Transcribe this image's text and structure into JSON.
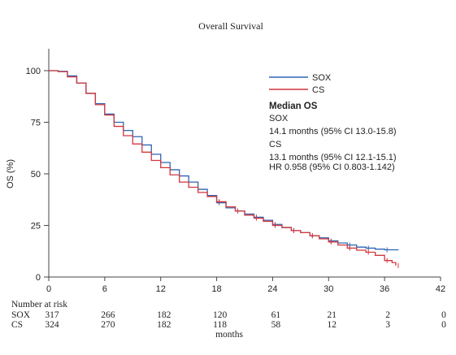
{
  "chart_data": {
    "type": "line",
    "title": "Overall Survival",
    "xlabel": "months",
    "ylabel": "OS (%)",
    "xlim": [
      0,
      42
    ],
    "ylim": [
      0,
      100
    ],
    "x_ticks": [
      0,
      6,
      12,
      18,
      24,
      30,
      36,
      42
    ],
    "y_ticks": [
      0,
      25,
      50,
      75,
      100
    ],
    "legend_position": "top-right",
    "series": [
      {
        "name": "SOX",
        "color": "#2e64b4",
        "points": [
          [
            0,
            100
          ],
          [
            1,
            99.7
          ],
          [
            2,
            97.5
          ],
          [
            3,
            94
          ],
          [
            4,
            89
          ],
          [
            5,
            84
          ],
          [
            6,
            79
          ],
          [
            7,
            75
          ],
          [
            8,
            71
          ],
          [
            9,
            68
          ],
          [
            10,
            64
          ],
          [
            11,
            59.5
          ],
          [
            12,
            55.5
          ],
          [
            13,
            52
          ],
          [
            14,
            49
          ],
          [
            15,
            46
          ],
          [
            16,
            42.5
          ],
          [
            17,
            39.5
          ],
          [
            18,
            36
          ],
          [
            19,
            33.5
          ],
          [
            20,
            32
          ],
          [
            21,
            30.5
          ],
          [
            22,
            29
          ],
          [
            23,
            27.5
          ],
          [
            24,
            25.5
          ],
          [
            25,
            24
          ],
          [
            26,
            22.5
          ],
          [
            27,
            21.5
          ],
          [
            28,
            20
          ],
          [
            29,
            19
          ],
          [
            30,
            17.5
          ],
          [
            31,
            16.5
          ],
          [
            32,
            15.5
          ],
          [
            33,
            14.5
          ],
          [
            34,
            14
          ],
          [
            35,
            13.5
          ],
          [
            36,
            13.2
          ],
          [
            37.5,
            13.2
          ]
        ]
      },
      {
        "name": "CS",
        "color": "#d2373c",
        "points": [
          [
            0,
            100
          ],
          [
            1,
            99.5
          ],
          [
            2,
            97
          ],
          [
            3,
            94
          ],
          [
            4,
            89
          ],
          [
            5,
            83.5
          ],
          [
            6,
            78.5
          ],
          [
            7,
            73
          ],
          [
            8,
            68.5
          ],
          [
            9,
            64.5
          ],
          [
            10,
            60.5
          ],
          [
            11,
            56.5
          ],
          [
            12,
            53
          ],
          [
            13,
            49.5
          ],
          [
            14,
            46
          ],
          [
            15,
            43.5
          ],
          [
            16,
            41
          ],
          [
            17,
            39
          ],
          [
            18,
            36.5
          ],
          [
            19,
            34
          ],
          [
            20,
            32
          ],
          [
            21,
            30
          ],
          [
            22,
            28.5
          ],
          [
            23,
            27
          ],
          [
            24,
            25
          ],
          [
            25,
            24
          ],
          [
            26,
            22.5
          ],
          [
            27,
            21.5
          ],
          [
            28,
            20
          ],
          [
            29,
            18.5
          ],
          [
            30,
            17
          ],
          [
            31,
            15.5
          ],
          [
            32,
            14
          ],
          [
            33,
            13
          ],
          [
            34,
            12
          ],
          [
            35,
            10.5
          ],
          [
            36,
            8
          ],
          [
            36.8,
            7
          ],
          [
            37.2,
            5.5
          ]
        ]
      }
    ],
    "annotations": {
      "median_title": "Median OS",
      "sox_label": "SOX",
      "sox_value": "14.1 months (95% CI 13.0-15.8)",
      "cs_label": "CS",
      "cs_value": "13.1 months (95% CI 12.1-15.1)",
      "hr": "HR 0.958 (95% CI 0.803-1.142)"
    },
    "risk_table": {
      "header": "Number at risk",
      "rows": [
        {
          "label": "SOX",
          "values": [
            317,
            266,
            182,
            120,
            61,
            21,
            2,
            0
          ]
        },
        {
          "label": "CS",
          "values": [
            324,
            270,
            182,
            118,
            58,
            12,
            3,
            0
          ]
        }
      ]
    }
  }
}
